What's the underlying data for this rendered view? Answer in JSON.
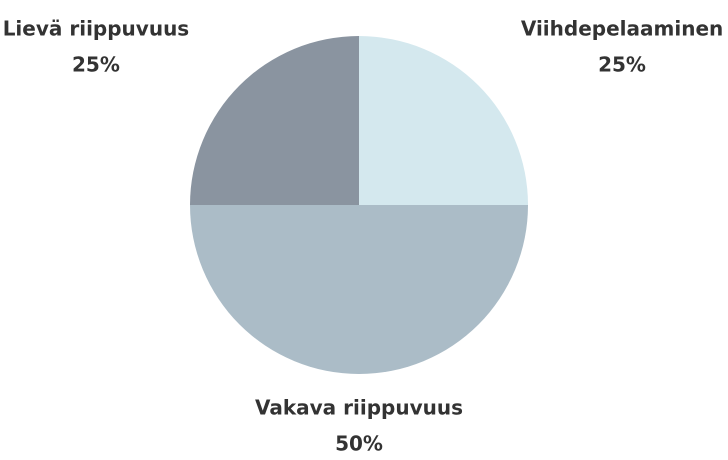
{
  "chart_data": {
    "type": "pie",
    "categories": [
      "Viihdepelaaminen",
      "Vakava riippuvuus",
      "Lievä riippuvuus"
    ],
    "values": [
      25,
      50,
      25
    ],
    "value_labels": [
      "25%",
      "50%",
      "25%"
    ],
    "colors": [
      "#d4e8ee",
      "#abbcc7",
      "#8a94a0"
    ]
  }
}
